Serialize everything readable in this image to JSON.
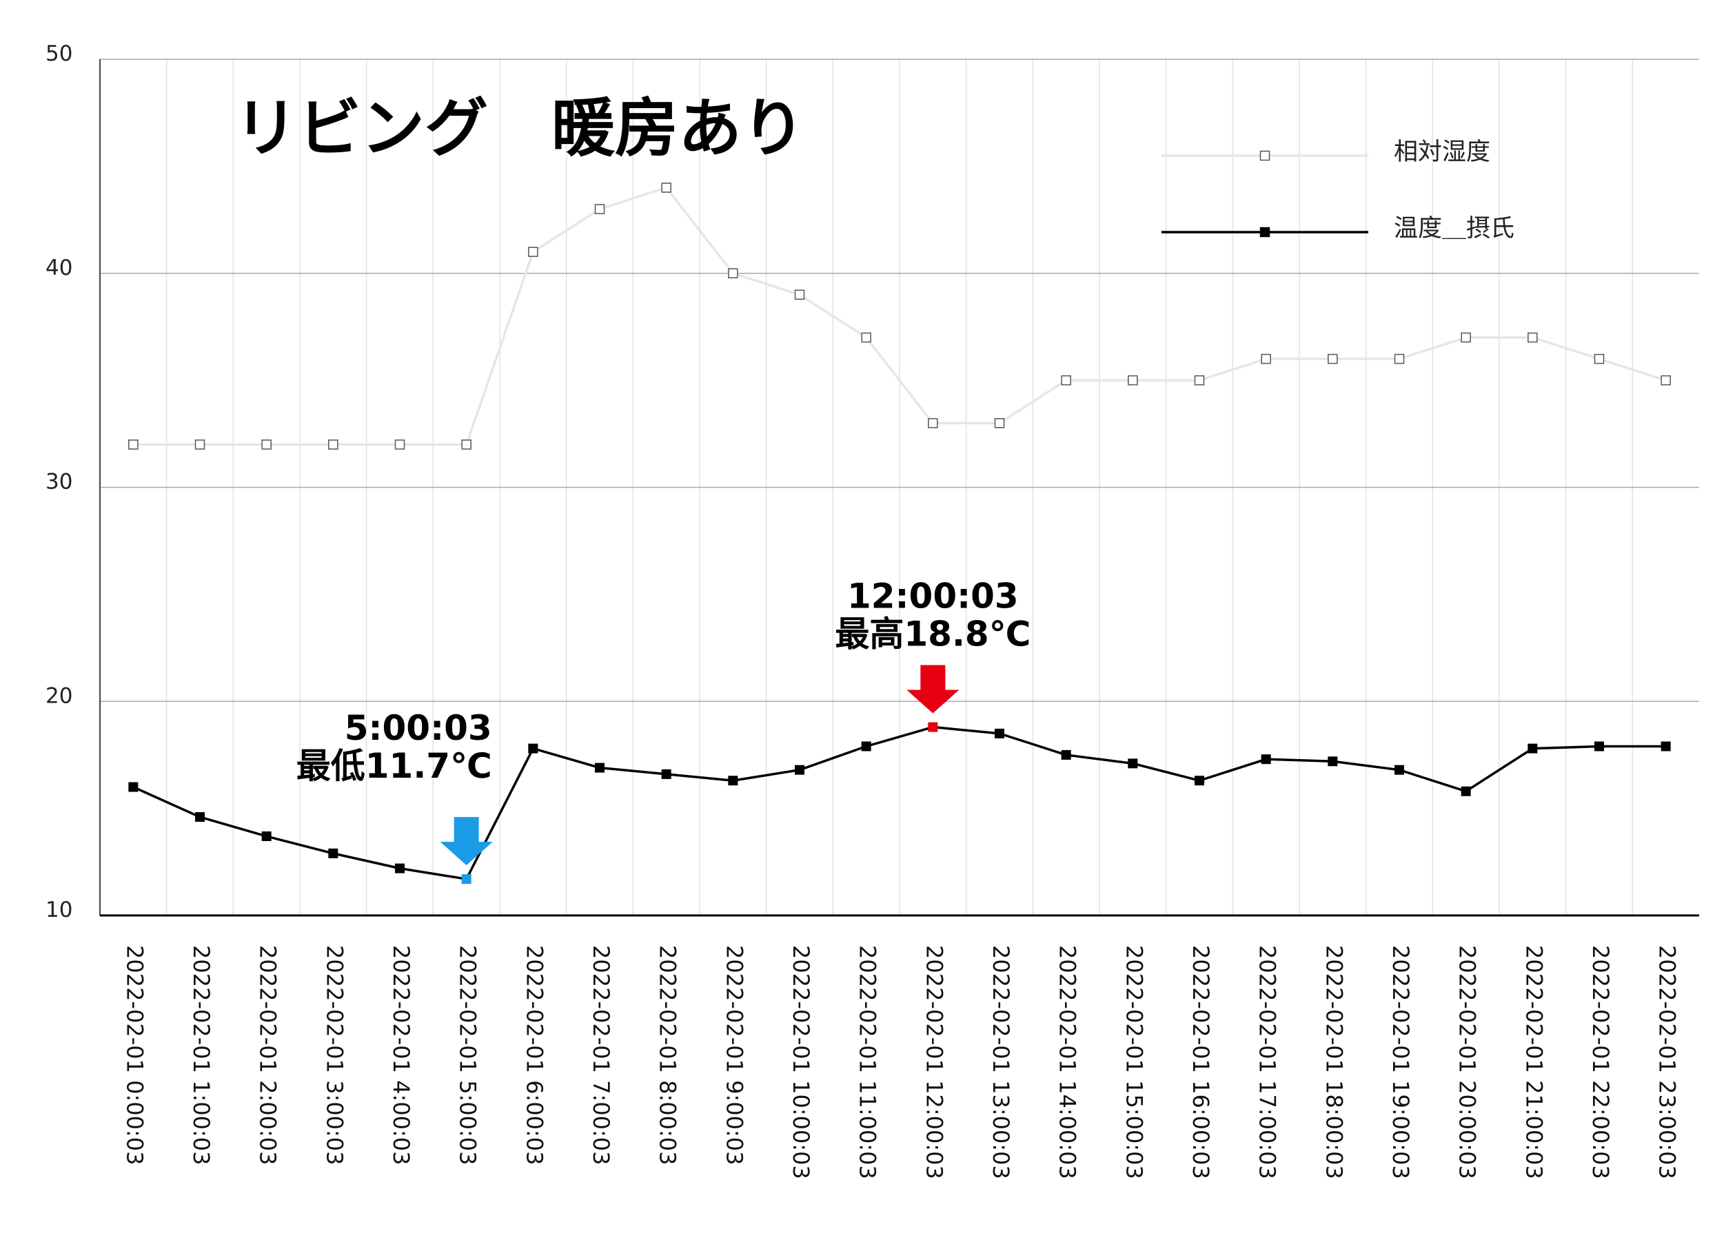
{
  "chart_data": {
    "type": "line",
    "title": "リビング　暖房あり",
    "ylim": [
      10,
      50
    ],
    "yticks": [
      10,
      20,
      30,
      40,
      50
    ],
    "grid": true,
    "legend_placement": "top-right",
    "categories": [
      "2022-02-01 0:00:03",
      "2022-02-01 1:00:03",
      "2022-02-01 2:00:03",
      "2022-02-01 3:00:03",
      "2022-02-01 4:00:03",
      "2022-02-01 5:00:03",
      "2022-02-01 6:00:03",
      "2022-02-01 7:00:03",
      "2022-02-01 8:00:03",
      "2022-02-01 9:00:03",
      "2022-02-01 10:00:03",
      "2022-02-01 11:00:03",
      "2022-02-01 12:00:03",
      "2022-02-01 13:00:03",
      "2022-02-01 14:00:03",
      "2022-02-01 15:00:03",
      "2022-02-01 16:00:03",
      "2022-02-01 17:00:03",
      "2022-02-01 18:00:03",
      "2022-02-01 19:00:03",
      "2022-02-01 20:00:03",
      "2022-02-01 21:00:03",
      "2022-02-01 22:00:03",
      "2022-02-01 23:00:03"
    ],
    "series": [
      {
        "name": "相対湿度",
        "color": "#e6e6e6",
        "marker": "hollow-square",
        "values": [
          32,
          32,
          32,
          32,
          32,
          32,
          41,
          43,
          44,
          40,
          39,
          37,
          33,
          33,
          35,
          35,
          35,
          36,
          36,
          36,
          37,
          37,
          36,
          35
        ]
      },
      {
        "name": "温度＿摂氏",
        "color": "#000000",
        "marker": "filled-square",
        "values": [
          16.0,
          14.6,
          13.7,
          12.9,
          12.2,
          11.7,
          17.8,
          16.9,
          16.6,
          16.3,
          16.8,
          17.9,
          18.8,
          18.5,
          17.5,
          17.1,
          16.3,
          17.3,
          17.2,
          16.8,
          15.8,
          17.8,
          17.9,
          17.9
        ]
      }
    ],
    "annotations": [
      {
        "time": "5:00:03",
        "label": "最低11.7℃",
        "index": 5,
        "value": 11.7,
        "color": "#1a9be6",
        "arrow": "down"
      },
      {
        "time": "12:00:03",
        "label": "最高18.8℃",
        "index": 12,
        "value": 18.8,
        "color": "#e60012",
        "arrow": "down"
      }
    ]
  }
}
